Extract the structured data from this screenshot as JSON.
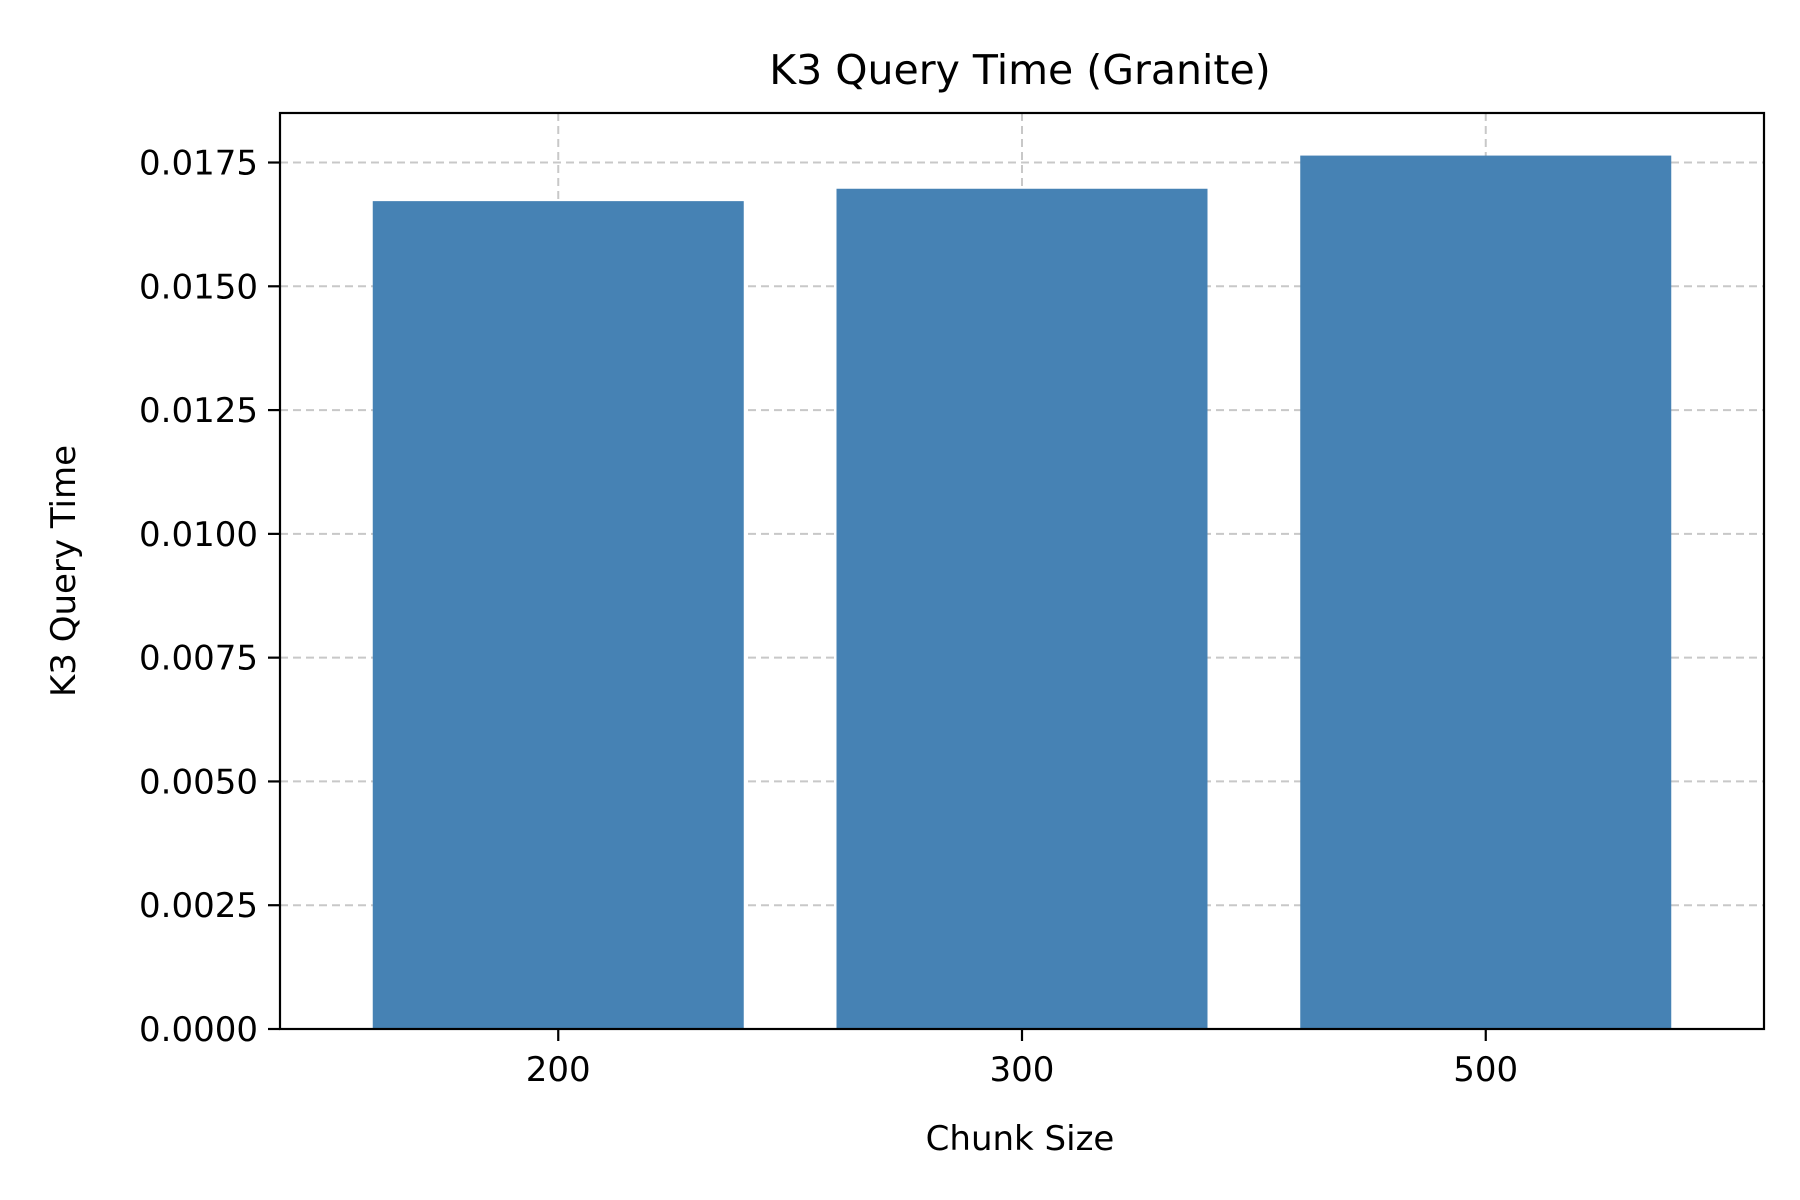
{
  "chart_data": {
    "type": "bar",
    "title": "K3 Query Time (Granite)",
    "xlabel": "Chunk Size",
    "ylabel": "K3 Query Time",
    "categories": [
      "200",
      "300",
      "500"
    ],
    "values": [
      0.01672,
      0.01697,
      0.01764
    ],
    "ylim": [
      0,
      0.0185
    ],
    "yticks": [
      "0.0000",
      "0.0025",
      "0.0050",
      "0.0075",
      "0.0100",
      "0.0125",
      "0.0150",
      "0.0175"
    ],
    "grid": true,
    "bar_color": "#4682b4"
  }
}
